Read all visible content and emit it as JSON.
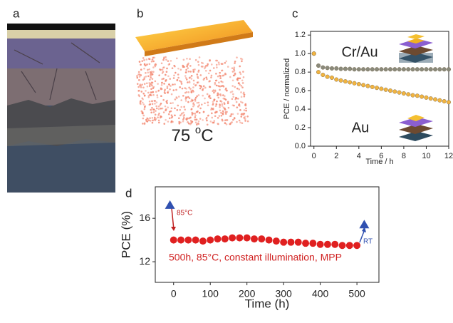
{
  "panel_labels": [
    "a",
    "b",
    "c",
    "d"
  ],
  "temperature_label": {
    "number": "75",
    "sup": "o",
    "unit": "C"
  },
  "chart_data": [
    {
      "type": "scatter",
      "xlabel": "Time / h",
      "ylabel": "PCE / normalized",
      "annotations": [
        "Cr/Au",
        "Au"
      ],
      "x": [
        0,
        0.4,
        0.8,
        1.2,
        1.6,
        2,
        2.4,
        2.8,
        3.2,
        3.6,
        4,
        4.4,
        4.8,
        5.2,
        5.6,
        6,
        6.4,
        6.8,
        7.2,
        7.6,
        8,
        8.4,
        8.8,
        9.2,
        9.6,
        10,
        10.4,
        10.8,
        11.2,
        11.6,
        12
      ],
      "series": [
        {
          "name": "Cr/Au",
          "color": "#8a8a7c",
          "values": [
            1.0,
            0.87,
            0.85,
            0.845,
            0.84,
            0.84,
            0.835,
            0.835,
            0.835,
            0.83,
            0.83,
            0.83,
            0.83,
            0.83,
            0.83,
            0.83,
            0.83,
            0.83,
            0.83,
            0.83,
            0.83,
            0.83,
            0.83,
            0.83,
            0.83,
            0.83,
            0.83,
            0.83,
            0.83,
            0.83,
            0.83
          ]
        },
        {
          "name": "Au",
          "color": "#f2b440",
          "values": [
            1.0,
            0.8,
            0.77,
            0.75,
            0.74,
            0.72,
            0.71,
            0.7,
            0.69,
            0.68,
            0.67,
            0.66,
            0.65,
            0.64,
            0.63,
            0.62,
            0.61,
            0.6,
            0.59,
            0.58,
            0.57,
            0.56,
            0.55,
            0.545,
            0.535,
            0.525,
            0.515,
            0.505,
            0.495,
            0.485,
            0.475
          ]
        }
      ],
      "xlim": [
        -0.3,
        12
      ],
      "ylim": [
        0,
        1.24
      ],
      "xticks": [
        0,
        2,
        4,
        6,
        8,
        10,
        12
      ],
      "yticks": [
        {
          "value": 0,
          "label": "0.0"
        },
        0.2,
        0.4,
        0.6,
        0.8,
        {
          "value": 1,
          "label": "1.0"
        },
        1.2
      ]
    },
    {
      "type": "scatter",
      "xlabel": "Time (h)",
      "ylabel": "PCE (%)",
      "annotations": [
        "85°C",
        "RT",
        "500h, 85°C, constant illumination, MPP"
      ],
      "x": [
        0,
        20,
        40,
        60,
        80,
        100,
        120,
        140,
        160,
        180,
        200,
        220,
        240,
        260,
        280,
        300,
        320,
        340,
        360,
        380,
        400,
        420,
        440,
        460,
        480,
        500
      ],
      "values": [
        14.0,
        14.0,
        14.0,
        14.0,
        13.9,
        14.0,
        14.1,
        14.1,
        14.2,
        14.2,
        14.2,
        14.1,
        14.1,
        14.0,
        13.9,
        13.8,
        13.8,
        13.8,
        13.7,
        13.7,
        13.6,
        13.6,
        13.6,
        13.5,
        13.5,
        13.5
      ],
      "color": "#e02020",
      "markers": {
        "x": [
          -10,
          520
        ],
        "values": [
          17.2,
          15.4
        ],
        "color": "#3050b0"
      },
      "xlim": [
        -50,
        560
      ],
      "ylim": [
        10.1,
        18.9
      ],
      "xticks": [
        0,
        100,
        200,
        300,
        400,
        500
      ],
      "yticks": [
        12,
        16
      ]
    }
  ]
}
